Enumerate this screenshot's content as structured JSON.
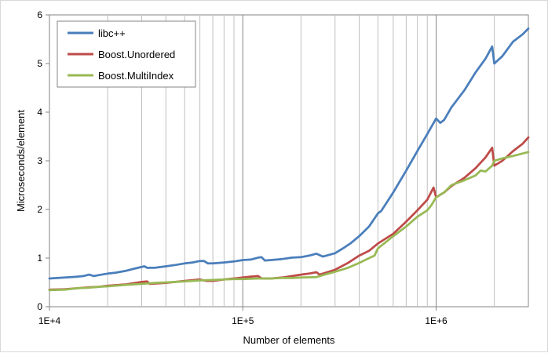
{
  "chart_data": {
    "type": "line",
    "title": "",
    "xlabel": "Number of elements",
    "ylabel": "Microseconds/element",
    "x_scale": "log",
    "xlim": [
      10000,
      3000000
    ],
    "ylim": [
      0,
      6
    ],
    "x_major_ticks": [
      10000,
      100000,
      1000000
    ],
    "x_tick_labels": [
      "1E+4",
      "1E+5",
      "1E+6"
    ],
    "y_ticks": [
      0,
      1,
      2,
      3,
      4,
      5,
      6
    ],
    "y_tick_labels": [
      "0",
      "1",
      "2",
      "3",
      "4",
      "5",
      "6"
    ],
    "grid": "vertical log gridlines (major and minor)",
    "legend_position": "top-left",
    "series": [
      {
        "name": "libc++",
        "color": "#4a7ebb",
        "points": [
          [
            10000,
            0.58
          ],
          [
            11000,
            0.59
          ],
          [
            12000,
            0.6
          ],
          [
            13000,
            0.61
          ],
          [
            14000,
            0.62
          ],
          [
            15000,
            0.63
          ],
          [
            16000,
            0.66
          ],
          [
            17000,
            0.63
          ],
          [
            18000,
            0.65
          ],
          [
            20000,
            0.68
          ],
          [
            22000,
            0.7
          ],
          [
            25000,
            0.74
          ],
          [
            28000,
            0.79
          ],
          [
            31000,
            0.83
          ],
          [
            32000,
            0.8
          ],
          [
            35000,
            0.8
          ],
          [
            40000,
            0.83
          ],
          [
            45000,
            0.86
          ],
          [
            50000,
            0.89
          ],
          [
            55000,
            0.91
          ],
          [
            60000,
            0.94
          ],
          [
            63000,
            0.94
          ],
          [
            66000,
            0.89
          ],
          [
            70000,
            0.89
          ],
          [
            80000,
            0.91
          ],
          [
            90000,
            0.93
          ],
          [
            100000,
            0.96
          ],
          [
            110000,
            0.97
          ],
          [
            120000,
            1.01
          ],
          [
            125000,
            1.02
          ],
          [
            130000,
            0.95
          ],
          [
            140000,
            0.96
          ],
          [
            160000,
            0.98
          ],
          [
            180000,
            1.01
          ],
          [
            200000,
            1.02
          ],
          [
            220000,
            1.05
          ],
          [
            240000,
            1.09
          ],
          [
            250000,
            1.06
          ],
          [
            260000,
            1.03
          ],
          [
            300000,
            1.1
          ],
          [
            330000,
            1.2
          ],
          [
            360000,
            1.3
          ],
          [
            400000,
            1.45
          ],
          [
            450000,
            1.65
          ],
          [
            500000,
            1.92
          ],
          [
            520000,
            1.97
          ],
          [
            600000,
            2.35
          ],
          [
            700000,
            2.8
          ],
          [
            800000,
            3.2
          ],
          [
            900000,
            3.55
          ],
          [
            1000000,
            3.87
          ],
          [
            1050000,
            3.78
          ],
          [
            1100000,
            3.84
          ],
          [
            1200000,
            4.1
          ],
          [
            1400000,
            4.45
          ],
          [
            1600000,
            4.82
          ],
          [
            1800000,
            5.1
          ],
          [
            1950000,
            5.35
          ],
          [
            2000000,
            5.0
          ],
          [
            2200000,
            5.15
          ],
          [
            2500000,
            5.45
          ],
          [
            2800000,
            5.6
          ],
          [
            3000000,
            5.72
          ]
        ]
      },
      {
        "name": "Boost.Unordered",
        "color": "#be4b48",
        "points": [
          [
            10000,
            0.35
          ],
          [
            12000,
            0.36
          ],
          [
            14000,
            0.38
          ],
          [
            16000,
            0.4
          ],
          [
            18000,
            0.41
          ],
          [
            20000,
            0.43
          ],
          [
            25000,
            0.46
          ],
          [
            30000,
            0.51
          ],
          [
            32000,
            0.52
          ],
          [
            33000,
            0.47
          ],
          [
            40000,
            0.49
          ],
          [
            50000,
            0.53
          ],
          [
            60000,
            0.56
          ],
          [
            65000,
            0.53
          ],
          [
            70000,
            0.53
          ],
          [
            80000,
            0.56
          ],
          [
            90000,
            0.58
          ],
          [
            100000,
            0.6
          ],
          [
            110000,
            0.62
          ],
          [
            120000,
            0.63
          ],
          [
            125000,
            0.58
          ],
          [
            140000,
            0.58
          ],
          [
            160000,
            0.6
          ],
          [
            180000,
            0.63
          ],
          [
            200000,
            0.66
          ],
          [
            220000,
            0.68
          ],
          [
            240000,
            0.71
          ],
          [
            250000,
            0.66
          ],
          [
            300000,
            0.76
          ],
          [
            350000,
            0.9
          ],
          [
            400000,
            1.05
          ],
          [
            450000,
            1.15
          ],
          [
            500000,
            1.3
          ],
          [
            600000,
            1.5
          ],
          [
            700000,
            1.75
          ],
          [
            800000,
            1.98
          ],
          [
            900000,
            2.2
          ],
          [
            970000,
            2.45
          ],
          [
            1000000,
            2.25
          ],
          [
            1100000,
            2.35
          ],
          [
            1200000,
            2.48
          ],
          [
            1400000,
            2.65
          ],
          [
            1600000,
            2.85
          ],
          [
            1800000,
            3.07
          ],
          [
            1950000,
            3.27
          ],
          [
            2000000,
            2.9
          ],
          [
            2200000,
            3.0
          ],
          [
            2500000,
            3.2
          ],
          [
            2800000,
            3.35
          ],
          [
            3000000,
            3.48
          ]
        ]
      },
      {
        "name": "Boost.MultiIndex",
        "color": "#98b954",
        "points": [
          [
            10000,
            0.34
          ],
          [
            12000,
            0.35
          ],
          [
            14000,
            0.38
          ],
          [
            16000,
            0.39
          ],
          [
            18000,
            0.41
          ],
          [
            20000,
            0.42
          ],
          [
            25000,
            0.45
          ],
          [
            30000,
            0.47
          ],
          [
            35000,
            0.49
          ],
          [
            40000,
            0.5
          ],
          [
            50000,
            0.52
          ],
          [
            60000,
            0.54
          ],
          [
            70000,
            0.55
          ],
          [
            80000,
            0.56
          ],
          [
            90000,
            0.57
          ],
          [
            100000,
            0.57
          ],
          [
            120000,
            0.58
          ],
          [
            140000,
            0.58
          ],
          [
            160000,
            0.59
          ],
          [
            180000,
            0.59
          ],
          [
            200000,
            0.6
          ],
          [
            240000,
            0.61
          ],
          [
            260000,
            0.65
          ],
          [
            300000,
            0.72
          ],
          [
            350000,
            0.8
          ],
          [
            400000,
            0.9
          ],
          [
            450000,
            1.0
          ],
          [
            480000,
            1.05
          ],
          [
            500000,
            1.2
          ],
          [
            600000,
            1.45
          ],
          [
            700000,
            1.65
          ],
          [
            800000,
            1.85
          ],
          [
            900000,
            1.98
          ],
          [
            950000,
            2.1
          ],
          [
            1000000,
            2.25
          ],
          [
            1100000,
            2.35
          ],
          [
            1200000,
            2.5
          ],
          [
            1400000,
            2.6
          ],
          [
            1600000,
            2.7
          ],
          [
            1700000,
            2.8
          ],
          [
            1800000,
            2.78
          ],
          [
            1950000,
            2.9
          ],
          [
            2000000,
            3.0
          ],
          [
            2200000,
            3.05
          ],
          [
            2500000,
            3.1
          ],
          [
            2800000,
            3.15
          ],
          [
            3000000,
            3.18
          ]
        ]
      }
    ]
  }
}
